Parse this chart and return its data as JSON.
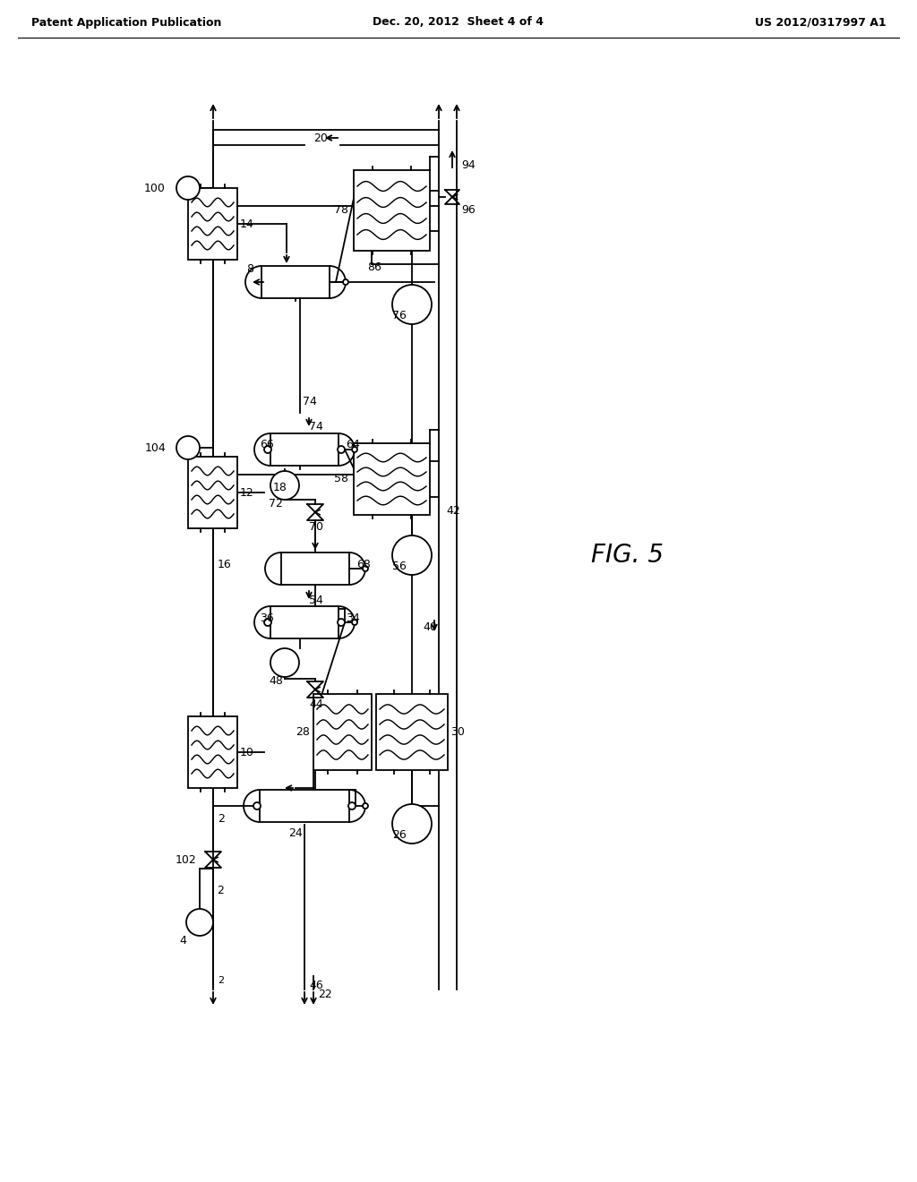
{
  "title_left": "Patent Application Publication",
  "title_center": "Dec. 20, 2012  Sheet 4 of 4",
  "title_right": "US 2012/0317997 A1",
  "fig_label": "FIG. 5",
  "background_color": "#ffffff",
  "line_color": "#000000"
}
